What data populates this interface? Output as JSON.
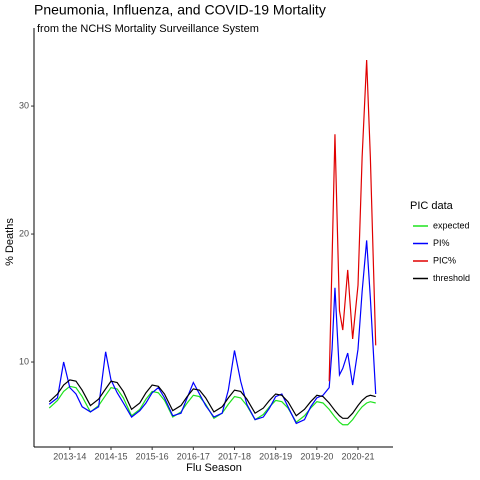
{
  "chart_data": {
    "type": "line",
    "title": "Pneumonia, Influenza, and COVID-19 Mortality",
    "subtitle": "from the NCHS Mortality Surveillance System",
    "x_label": "Flu Season",
    "y_label": "% Deaths",
    "legend_title": "PIC data",
    "legend": "right",
    "x": [
      2013.5,
      2013.7,
      2013.85,
      2014.0,
      2014.15,
      2014.3,
      2014.5,
      2014.7,
      2014.87,
      2015.0,
      2015.15,
      2015.3,
      2015.5,
      2015.7,
      2015.85,
      2016.0,
      2016.15,
      2016.3,
      2016.5,
      2016.7,
      2016.85,
      2017.0,
      2017.15,
      2017.3,
      2017.5,
      2017.7,
      2017.85,
      2018.0,
      2018.15,
      2018.3,
      2018.5,
      2018.7,
      2018.85,
      2019.0,
      2019.15,
      2019.3,
      2019.5,
      2019.7,
      2019.85,
      2020.0,
      2020.15,
      2020.3,
      2020.37,
      2020.44,
      2020.55,
      2020.63,
      2020.75,
      2020.87,
      2021.0,
      2021.1,
      2021.21,
      2021.3,
      2021.43
    ],
    "series": [
      {
        "name": "expected",
        "color": "#1ee21e",
        "values": [
          6.4,
          7.0,
          7.7,
          8.1,
          8.0,
          7.3,
          6.1,
          6.6,
          7.4,
          8.0,
          7.9,
          7.2,
          5.8,
          6.3,
          7.1,
          7.7,
          7.6,
          7.0,
          5.7,
          6.1,
          6.8,
          7.4,
          7.3,
          6.7,
          5.6,
          6.0,
          6.7,
          7.3,
          7.2,
          6.6,
          5.5,
          5.9,
          6.5,
          7.0,
          6.9,
          6.4,
          5.3,
          5.8,
          6.4,
          6.9,
          6.8,
          6.3,
          6.0,
          5.7,
          5.3,
          5.1,
          5.1,
          5.5,
          6.1,
          6.5,
          6.8,
          6.9,
          6.8
        ]
      },
      {
        "name": "PI%",
        "color": "#0000ff",
        "values": [
          6.7,
          7.2,
          10.0,
          8.0,
          7.5,
          6.5,
          6.1,
          6.5,
          10.8,
          8.6,
          7.6,
          6.8,
          5.7,
          6.2,
          6.8,
          7.6,
          8.0,
          7.2,
          5.8,
          6.0,
          7.2,
          8.4,
          7.5,
          6.6,
          5.7,
          6.0,
          7.8,
          10.9,
          8.5,
          6.7,
          5.5,
          5.7,
          6.4,
          7.3,
          7.5,
          6.5,
          5.2,
          5.5,
          6.5,
          7.2,
          7.4,
          8.0,
          11.0,
          15.8,
          9.0,
          9.5,
          10.7,
          8.2,
          11.0,
          15.5,
          19.5,
          15.0,
          7.5
        ]
      },
      {
        "name": "PIC%",
        "color": "#e00000",
        "values": [
          null,
          null,
          null,
          null,
          null,
          null,
          null,
          null,
          null,
          null,
          null,
          null,
          null,
          null,
          null,
          null,
          null,
          null,
          null,
          null,
          null,
          null,
          null,
          null,
          null,
          null,
          null,
          null,
          null,
          null,
          null,
          null,
          null,
          null,
          null,
          null,
          null,
          null,
          null,
          null,
          null,
          8.5,
          18,
          27.8,
          14,
          12.5,
          17.2,
          11.8,
          16,
          26,
          33.6,
          26,
          11.3
        ]
      },
      {
        "name": "threshold",
        "color": "#000000",
        "values": [
          6.9,
          7.5,
          8.2,
          8.6,
          8.5,
          7.8,
          6.6,
          7.1,
          7.9,
          8.5,
          8.4,
          7.7,
          6.3,
          6.8,
          7.6,
          8.2,
          8.1,
          7.5,
          6.2,
          6.6,
          7.3,
          7.9,
          7.8,
          7.2,
          6.1,
          6.5,
          7.2,
          7.8,
          7.7,
          7.1,
          6.0,
          6.4,
          7.0,
          7.5,
          7.4,
          6.9,
          5.8,
          6.3,
          6.9,
          7.4,
          7.3,
          6.8,
          6.5,
          6.2,
          5.8,
          5.6,
          5.6,
          6.0,
          6.6,
          7.0,
          7.3,
          7.4,
          7.3
        ]
      }
    ],
    "xlim": [
      2013.13,
      2021.85
    ],
    "xticks": [
      {
        "value": 2014,
        "label": "2013-14"
      },
      {
        "value": 2015,
        "label": "2014-15"
      },
      {
        "value": 2016,
        "label": "2015-16"
      },
      {
        "value": 2017,
        "label": "2016-17"
      },
      {
        "value": 2018,
        "label": "2017-18"
      },
      {
        "value": 2019,
        "label": "2018-19"
      },
      {
        "value": 2020,
        "label": "2019-20"
      },
      {
        "value": 2021,
        "label": "2020-21"
      }
    ],
    "ylim": [
      3.36,
      36.1
    ],
    "yticks": [
      10,
      20,
      30
    ]
  }
}
